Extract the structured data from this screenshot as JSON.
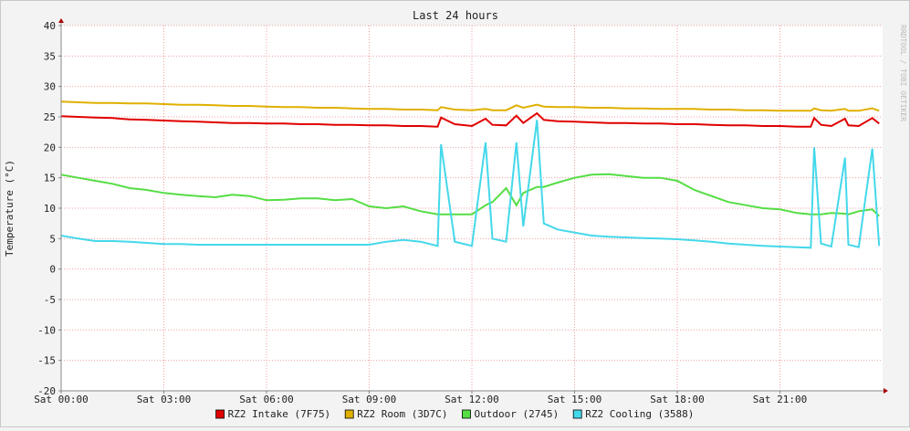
{
  "chart_data": {
    "type": "line",
    "title": "Last 24 hours",
    "y_label": "Temperature (°C)",
    "watermark": "RRDTOOL / TOBI OETIKER",
    "x": [
      0,
      0.5,
      1,
      1.5,
      2,
      2.5,
      3,
      3.5,
      4,
      4.5,
      5,
      5.5,
      6,
      6.5,
      7,
      7.5,
      8,
      8.5,
      9,
      9.5,
      10,
      10.5,
      11,
      11.1,
      11.5,
      12,
      12.4,
      12.6,
      13,
      13.3,
      13.5,
      13.9,
      14.1,
      14.5,
      15,
      15.5,
      16,
      16.5,
      17,
      17.5,
      18,
      18.5,
      19,
      19.5,
      20,
      20.5,
      21,
      21.5,
      21.9,
      22,
      22.2,
      22.5,
      22.9,
      23,
      23.3,
      23.7,
      23.9
    ],
    "xlim": [
      0,
      24
    ],
    "xticks": [
      {
        "value": 0,
        "label": "Sat 00:00"
      },
      {
        "value": 3,
        "label": "Sat 03:00"
      },
      {
        "value": 6,
        "label": "Sat 06:00"
      },
      {
        "value": 9,
        "label": "Sat 09:00"
      },
      {
        "value": 12,
        "label": "Sat 12:00"
      },
      {
        "value": 15,
        "label": "Sat 15:00"
      },
      {
        "value": 18,
        "label": "Sat 18:00"
      },
      {
        "value": 21,
        "label": "Sat 21:00"
      }
    ],
    "ylim": [
      -20,
      40
    ],
    "yticks": [
      -20,
      -15,
      -10,
      -5,
      0,
      5,
      10,
      15,
      20,
      25,
      30,
      35,
      40
    ],
    "grid": true,
    "legend": "bottom",
    "series": [
      {
        "name": "RZ2 Intake (7F75)",
        "color": "#e00000",
        "values": [
          25.1,
          25.0,
          24.9,
          24.8,
          24.6,
          24.5,
          24.4,
          24.3,
          24.2,
          24.1,
          24.0,
          24.0,
          23.9,
          23.9,
          23.8,
          23.8,
          23.7,
          23.7,
          23.6,
          23.6,
          23.5,
          23.5,
          23.4,
          24.9,
          23.8,
          23.5,
          24.7,
          23.7,
          23.6,
          25.2,
          24.0,
          25.6,
          24.5,
          24.3,
          24.2,
          24.1,
          24.0,
          24.0,
          23.9,
          23.9,
          23.8,
          23.8,
          23.7,
          23.6,
          23.6,
          23.5,
          23.5,
          23.4,
          23.4,
          24.8,
          23.7,
          23.5,
          24.7,
          23.6,
          23.5,
          24.8,
          23.9
        ]
      },
      {
        "name": "RZ2 Room (3D7C)",
        "color": "#e0b000",
        "values": [
          27.5,
          27.4,
          27.3,
          27.3,
          27.2,
          27.2,
          27.1,
          27.0,
          27.0,
          26.9,
          26.8,
          26.8,
          26.7,
          26.6,
          26.6,
          26.5,
          26.5,
          26.4,
          26.3,
          26.3,
          26.2,
          26.2,
          26.1,
          26.6,
          26.2,
          26.1,
          26.3,
          26.1,
          26.1,
          26.9,
          26.5,
          27.0,
          26.7,
          26.6,
          26.6,
          26.5,
          26.5,
          26.4,
          26.4,
          26.3,
          26.3,
          26.3,
          26.2,
          26.2,
          26.1,
          26.1,
          26.0,
          26.0,
          26.0,
          26.4,
          26.1,
          26.0,
          26.3,
          26.0,
          26.0,
          26.4,
          26.0
        ]
      },
      {
        "name": "Outdoor (2745)",
        "color": "#55dd44",
        "values": [
          15.5,
          15.0,
          14.5,
          14.0,
          13.3,
          13.0,
          12.5,
          12.2,
          12.0,
          11.8,
          12.2,
          12.0,
          11.3,
          11.4,
          11.6,
          11.6,
          11.3,
          11.5,
          10.3,
          10.0,
          10.3,
          9.5,
          9.0,
          9.0,
          9.0,
          9.0,
          10.5,
          11.0,
          13.3,
          10.5,
          12.5,
          13.5,
          13.5,
          14.2,
          15.0,
          15.5,
          15.6,
          15.3,
          15.0,
          15.0,
          14.5,
          13.0,
          12.0,
          11.0,
          10.5,
          10.0,
          9.8,
          9.2,
          9.0,
          9.0,
          9.0,
          9.2,
          9.1,
          9.0,
          9.5,
          9.8,
          8.7
        ]
      },
      {
        "name": "RZ2 Cooling (3588)",
        "color": "#44d8ea",
        "values": [
          5.5,
          5.0,
          4.6,
          4.6,
          4.5,
          4.3,
          4.1,
          4.1,
          4.0,
          4.0,
          4.0,
          4.0,
          4.0,
          4.0,
          4.0,
          4.0,
          4.0,
          4.0,
          4.0,
          4.5,
          4.8,
          4.5,
          3.8,
          20.5,
          4.5,
          3.8,
          20.8,
          5.0,
          4.5,
          20.8,
          7.0,
          24.5,
          7.5,
          6.5,
          6.0,
          5.5,
          5.3,
          5.2,
          5.1,
          5.0,
          4.9,
          4.7,
          4.5,
          4.2,
          4.0,
          3.8,
          3.7,
          3.6,
          3.5,
          20.0,
          4.2,
          3.7,
          18.3,
          4.0,
          3.6,
          19.8,
          3.8
        ]
      }
    ]
  }
}
